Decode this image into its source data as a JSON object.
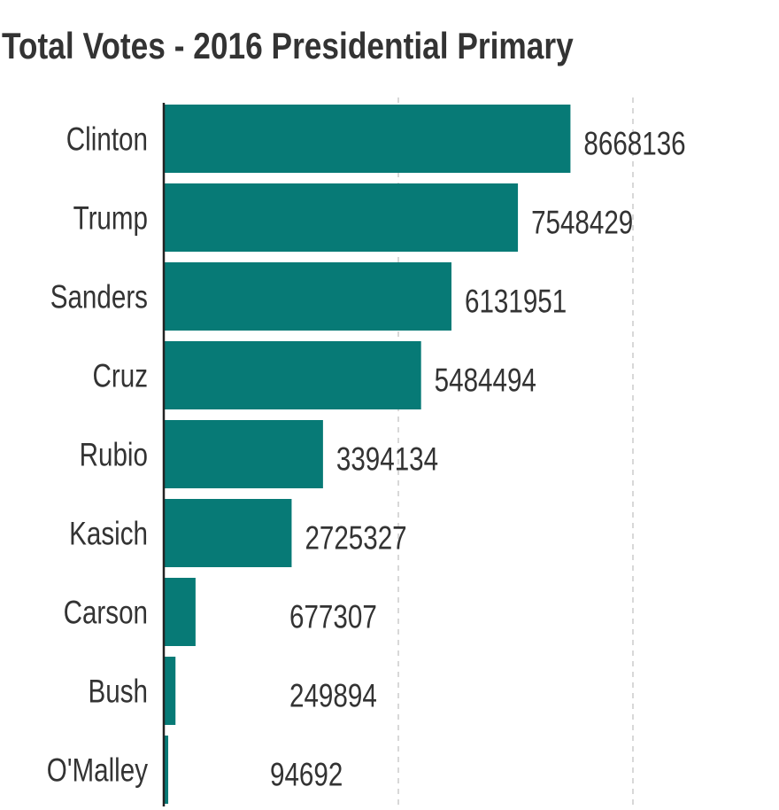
{
  "chart_data": {
    "type": "bar",
    "orientation": "horizontal",
    "title": "Total Votes - 2016 Presidential Primary",
    "xlabel": "",
    "ylabel": "",
    "categories": [
      "Clinton",
      "Trump",
      "Sanders",
      "Cruz",
      "Rubio",
      "Kasich",
      "Carson",
      "Bush",
      "O'Malley"
    ],
    "values": [
      8668136,
      7548429,
      6131951,
      5484494,
      3394134,
      2725327,
      677307,
      249894,
      94692
    ],
    "data_labels": [
      "8668136",
      "7548429",
      "6131951",
      "5484494",
      "3394134",
      "2725327",
      "677307",
      "249894",
      "94692"
    ],
    "xlim": [
      0,
      10000000
    ],
    "gridlines": [
      5000000,
      10000000
    ],
    "grid": "vertical dashed",
    "legend": "none",
    "colors": {
      "bar": "#077a76",
      "text": "#333333",
      "grid": "#d8d8d8",
      "axis": "#222222"
    }
  }
}
